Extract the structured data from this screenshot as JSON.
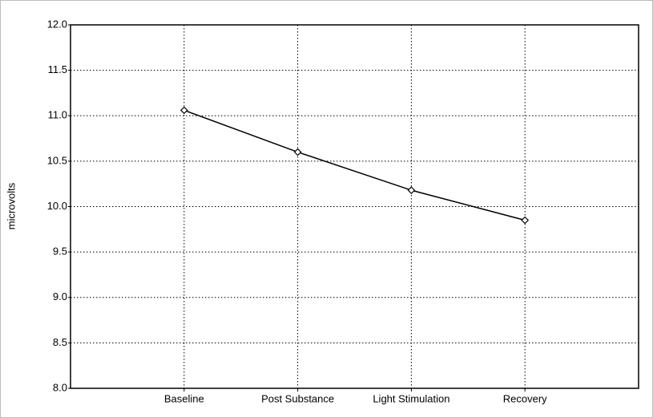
{
  "chart_data": {
    "type": "line",
    "y_label": "microvolts",
    "categories": [
      "Baseline",
      "Post Substance",
      "Light Stimulation",
      "Recovery"
    ],
    "series": [
      {
        "name": null,
        "color": "#000000",
        "values": [
          11.06,
          10.6,
          10.18,
          9.85
        ]
      }
    ],
    "ylim": [
      8,
      12
    ],
    "yticks": [
      {
        "value": 8,
        "label": "8.0"
      },
      8.5,
      {
        "value": 9,
        "label": "9.0"
      },
      9.5,
      {
        "value": 10,
        "label": "10.0"
      },
      10.5,
      {
        "value": 11,
        "label": "11.0"
      },
      11.5,
      {
        "value": 12,
        "label": "12.0"
      }
    ],
    "grid": true
  }
}
